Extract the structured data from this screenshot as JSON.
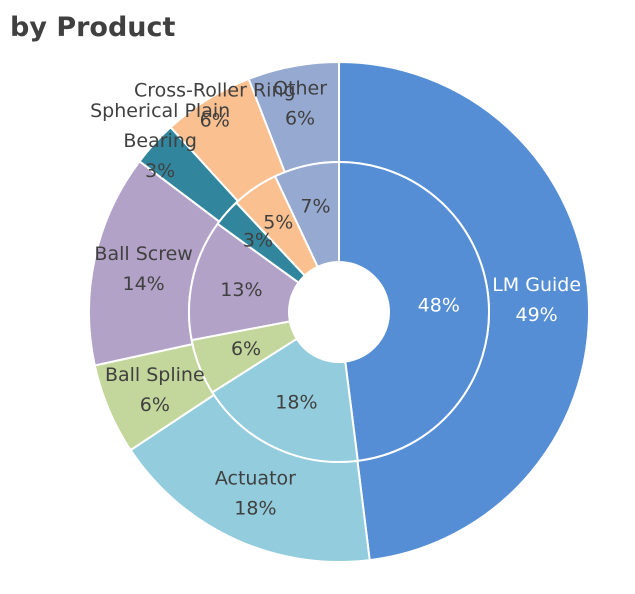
{
  "chart_data": {
    "type": "pie",
    "subtype": "nested-donut",
    "title": "by Product",
    "categories": [
      "LM Guide",
      "Actuator",
      "Ball Spline",
      "Ball Screw",
      "Spherical Plain Bearing",
      "Cross-Roller Ring",
      "Other"
    ],
    "series": [
      {
        "ring": "outer",
        "values": [
          49,
          18,
          6,
          14,
          3,
          6,
          6
        ],
        "labels": [
          "49%",
          "18%",
          "6%",
          "14%",
          "3%",
          "6%",
          "6%"
        ]
      },
      {
        "ring": "inner",
        "values": [
          48,
          18,
          6,
          13,
          3,
          5,
          7
        ],
        "labels": [
          "48%",
          "18%",
          "6%",
          "13%",
          "3%",
          "5%",
          "7%"
        ]
      }
    ],
    "category_label_lines": [
      [
        "LM Guide"
      ],
      [
        "Actuator"
      ],
      [
        "Ball Spline"
      ],
      [
        "Ball Screw"
      ],
      [
        "Spherical Plain",
        "Bearing"
      ],
      [
        "Cross-Roller Ring"
      ],
      [
        "Other"
      ]
    ],
    "colors": [
      "#558ED5",
      "#93CDDD",
      "#C3D69B",
      "#B3A2C7",
      "#31859C",
      "#FAC090",
      "#95A9D1"
    ],
    "legend": "none"
  }
}
